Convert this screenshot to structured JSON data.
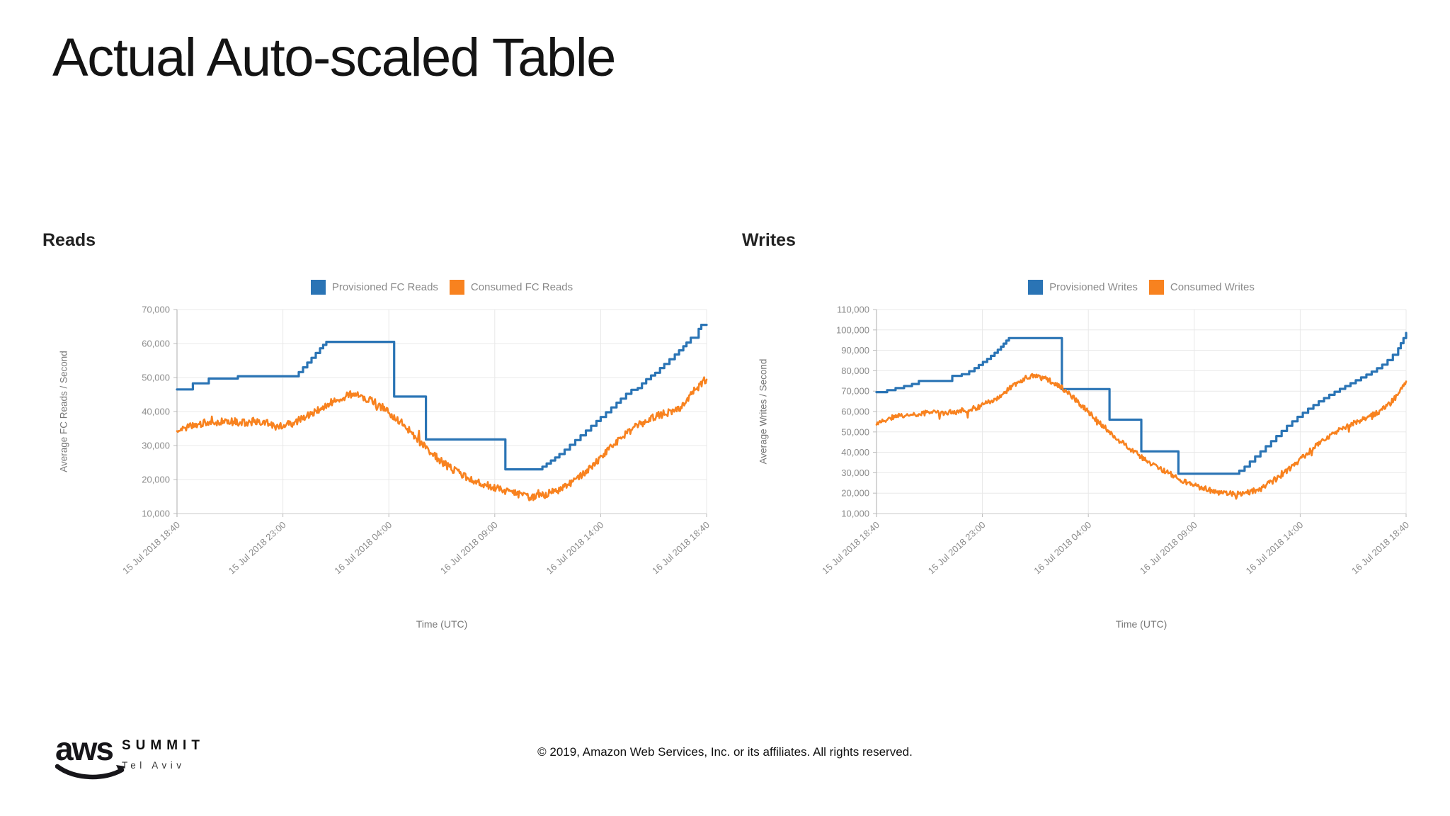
{
  "slide": {
    "title": "Actual Auto-scaled Table"
  },
  "footer": {
    "logo_text": "aws",
    "brand": "SUMMIT",
    "brand_sub": "Tel Aviv",
    "copyright": "© 2019, Amazon Web Services, Inc. or its affiliates. All rights reserved."
  },
  "colors": {
    "provisioned": "#2a74b5",
    "consumed": "#f8821f",
    "grid": "#e8e8e8",
    "axis": "#bbbbbb",
    "tick_text": "#8c8c8c"
  },
  "chart_data": [
    {
      "id": "reads",
      "type": "line",
      "title": "Reads",
      "ylabel": "Average FC Reads / Second",
      "xlabel": "Time (UTC)",
      "ylim": [
        10000,
        70000
      ],
      "ytick_step": 10000,
      "yticks": [
        "70,000",
        "60,000",
        "50,000",
        "40,000",
        "30,000",
        "20,000",
        "10,000"
      ],
      "xticks": [
        "15 Jul 2018 18:40",
        "15 Jul 2018 23:00",
        "16 Jul 2018 04:00",
        "16 Jul 2018 09:00",
        "16 Jul 2018 14:00",
        "16 Jul 2018 18:40"
      ],
      "legend_position": "top",
      "grid": true,
      "series": [
        {
          "name": "Provisioned FC Reads",
          "color_key": "provisioned",
          "style": "step",
          "points": [
            [
              0,
              46500
            ],
            [
              0.03,
              48300
            ],
            [
              0.06,
              49700
            ],
            [
              0.115,
              50400
            ],
            [
              0.23,
              51600
            ],
            [
              0.238,
              53000
            ],
            [
              0.246,
              54400
            ],
            [
              0.254,
              55800
            ],
            [
              0.262,
              57200
            ],
            [
              0.27,
              58600
            ],
            [
              0.276,
              59600
            ],
            [
              0.282,
              60500
            ],
            [
              0.41,
              44400
            ],
            [
              0.47,
              31800
            ],
            [
              0.62,
              23000
            ],
            [
              0.69,
              23800
            ],
            [
              0.698,
              24700
            ],
            [
              0.706,
              25600
            ],
            [
              0.714,
              26500
            ],
            [
              0.722,
              27500
            ],
            [
              0.732,
              28800
            ],
            [
              0.742,
              30200
            ],
            [
              0.752,
              31600
            ],
            [
              0.762,
              33000
            ],
            [
              0.772,
              34400
            ],
            [
              0.782,
              35800
            ],
            [
              0.792,
              37200
            ],
            [
              0.8,
              38400
            ],
            [
              0.81,
              39800
            ],
            [
              0.82,
              41200
            ],
            [
              0.83,
              42600
            ],
            [
              0.838,
              43800
            ],
            [
              0.848,
              45200
            ],
            [
              0.858,
              46400
            ],
            [
              0.87,
              46900
            ],
            [
              0.878,
              48300
            ],
            [
              0.886,
              49500
            ],
            [
              0.895,
              50600
            ],
            [
              0.903,
              51400
            ],
            [
              0.912,
              52800
            ],
            [
              0.92,
              54000
            ],
            [
              0.93,
              55400
            ],
            [
              0.94,
              56800
            ],
            [
              0.948,
              58000
            ],
            [
              0.956,
              59200
            ],
            [
              0.962,
              60300
            ],
            [
              0.97,
              61700
            ],
            [
              0.985,
              64300
            ],
            [
              0.99,
              65500
            ]
          ]
        },
        {
          "name": "Consumed FC Reads",
          "color_key": "consumed",
          "style": "noisy",
          "noise": 1150,
          "points": [
            [
              0,
              34500
            ],
            [
              0.015,
              35200
            ],
            [
              0.04,
              36200
            ],
            [
              0.07,
              36800
            ],
            [
              0.1,
              37000
            ],
            [
              0.13,
              36800
            ],
            [
              0.155,
              37300
            ],
            [
              0.175,
              36200
            ],
            [
              0.19,
              35400
            ],
            [
              0.205,
              35800
            ],
            [
              0.22,
              36800
            ],
            [
              0.24,
              38300
            ],
            [
              0.26,
              40000
            ],
            [
              0.28,
              41800
            ],
            [
              0.3,
              43300
            ],
            [
              0.315,
              44300
            ],
            [
              0.33,
              45000
            ],
            [
              0.345,
              44700
            ],
            [
              0.36,
              43800
            ],
            [
              0.375,
              42500
            ],
            [
              0.39,
              41000
            ],
            [
              0.405,
              39200
            ],
            [
              0.42,
              37200
            ],
            [
              0.435,
              35000
            ],
            [
              0.45,
              32500
            ],
            [
              0.465,
              30000
            ],
            [
              0.48,
              27800
            ],
            [
              0.495,
              25800
            ],
            [
              0.51,
              24000
            ],
            [
              0.525,
              22500
            ],
            [
              0.54,
              21200
            ],
            [
              0.555,
              20200
            ],
            [
              0.57,
              19300
            ],
            [
              0.585,
              18500
            ],
            [
              0.6,
              17700
            ],
            [
              0.615,
              17000
            ],
            [
              0.63,
              16300
            ],
            [
              0.645,
              15600
            ],
            [
              0.66,
              15000
            ],
            [
              0.675,
              14700
            ],
            [
              0.69,
              15200
            ],
            [
              0.705,
              16000
            ],
            [
              0.72,
              17000
            ],
            [
              0.735,
              18300
            ],
            [
              0.75,
              19800
            ],
            [
              0.765,
              21500
            ],
            [
              0.78,
              23500
            ],
            [
              0.795,
              25800
            ],
            [
              0.81,
              28200
            ],
            [
              0.825,
              30500
            ],
            [
              0.84,
              32500
            ],
            [
              0.855,
              34200
            ],
            [
              0.87,
              35800
            ],
            [
              0.885,
              37200
            ],
            [
              0.9,
              38300
            ],
            [
              0.915,
              39200
            ],
            [
              0.93,
              39800
            ],
            [
              0.94,
              40000
            ],
            [
              0.95,
              41000
            ],
            [
              0.96,
              42800
            ],
            [
              0.97,
              44800
            ],
            [
              0.98,
              46500
            ],
            [
              0.99,
              48000
            ],
            [
              1,
              49800
            ]
          ]
        }
      ]
    },
    {
      "id": "writes",
      "type": "line",
      "title": "Writes",
      "ylabel": "Average Writes / Second",
      "xlabel": "Time (UTC)",
      "ylim": [
        10000,
        110000
      ],
      "ytick_step": 10000,
      "yticks": [
        "110,000",
        "100,000",
        "90,000",
        "80,000",
        "70,000",
        "60,000",
        "50,000",
        "40,000",
        "30,000",
        "20,000",
        "10,000"
      ],
      "xticks": [
        "15 Jul 2018 18:40",
        "15 Jul 2018 23:00",
        "16 Jul 2018 04:00",
        "16 Jul 2018 09:00",
        "16 Jul 2018 14:00",
        "16 Jul 2018 18:40"
      ],
      "legend_position": "top",
      "grid": true,
      "series": [
        {
          "name": "Provisioned Writes",
          "color_key": "provisioned",
          "style": "step",
          "points": [
            [
              0,
              69500
            ],
            [
              0.02,
              70500
            ],
            [
              0.036,
              71500
            ],
            [
              0.052,
              72500
            ],
            [
              0.067,
              73500
            ],
            [
              0.08,
              75000
            ],
            [
              0.143,
              77500
            ],
            [
              0.161,
              78300
            ],
            [
              0.175,
              79800
            ],
            [
              0.185,
              81300
            ],
            [
              0.193,
              82800
            ],
            [
              0.201,
              84300
            ],
            [
              0.209,
              85800
            ],
            [
              0.216,
              87300
            ],
            [
              0.223,
              88800
            ],
            [
              0.229,
              90300
            ],
            [
              0.235,
              91800
            ],
            [
              0.24,
              93300
            ],
            [
              0.245,
              94800
            ],
            [
              0.25,
              96000
            ],
            [
              0.35,
              71000
            ],
            [
              0.44,
              56000
            ],
            [
              0.5,
              40500
            ],
            [
              0.57,
              29500
            ],
            [
              0.685,
              31000
            ],
            [
              0.695,
              33000
            ],
            [
              0.705,
              35500
            ],
            [
              0.715,
              38000
            ],
            [
              0.725,
              40500
            ],
            [
              0.735,
              43000
            ],
            [
              0.745,
              45500
            ],
            [
              0.755,
              48000
            ],
            [
              0.765,
              50500
            ],
            [
              0.775,
              53000
            ],
            [
              0.785,
              55200
            ],
            [
              0.795,
              57400
            ],
            [
              0.805,
              59400
            ],
            [
              0.815,
              61400
            ],
            [
              0.825,
              63200
            ],
            [
              0.835,
              65000
            ],
            [
              0.845,
              66600
            ],
            [
              0.855,
              68200
            ],
            [
              0.865,
              69700
            ],
            [
              0.875,
              71100
            ],
            [
              0.885,
              72500
            ],
            [
              0.895,
              73900
            ],
            [
              0.905,
              75300
            ],
            [
              0.915,
              76700
            ],
            [
              0.925,
              78100
            ],
            [
              0.935,
              79600
            ],
            [
              0.945,
              81200
            ],
            [
              0.955,
              83000
            ],
            [
              0.965,
              85200
            ],
            [
              0.975,
              87800
            ],
            [
              0.985,
              91000
            ],
            [
              0.99,
              93500
            ],
            [
              0.995,
              96000
            ],
            [
              1,
              98500
            ]
          ]
        },
        {
          "name": "Consumed Writes",
          "color_key": "consumed",
          "style": "noisy",
          "noise": 1300,
          "points": [
            [
              0,
              53500
            ],
            [
              0.01,
              55000
            ],
            [
              0.025,
              56800
            ],
            [
              0.05,
              58000
            ],
            [
              0.08,
              59000
            ],
            [
              0.11,
              59600
            ],
            [
              0.13,
              59300
            ],
            [
              0.15,
              59800
            ],
            [
              0.17,
              60800
            ],
            [
              0.19,
              62000
            ],
            [
              0.21,
              64200
            ],
            [
              0.23,
              67200
            ],
            [
              0.25,
              71200
            ],
            [
              0.265,
              74200
            ],
            [
              0.28,
              76300
            ],
            [
              0.29,
              77300
            ],
            [
              0.3,
              77000
            ],
            [
              0.315,
              76400
            ],
            [
              0.33,
              74800
            ],
            [
              0.345,
              72500
            ],
            [
              0.36,
              69500
            ],
            [
              0.38,
              64800
            ],
            [
              0.4,
              59800
            ],
            [
              0.42,
              54800
            ],
            [
              0.44,
              50000
            ],
            [
              0.46,
              45500
            ],
            [
              0.48,
              41500
            ],
            [
              0.5,
              37800
            ],
            [
              0.52,
              34400
            ],
            [
              0.54,
              31400
            ],
            [
              0.56,
              28600
            ],
            [
              0.58,
              26000
            ],
            [
              0.6,
              23800
            ],
            [
              0.62,
              22000
            ],
            [
              0.64,
              20700
            ],
            [
              0.66,
              19900
            ],
            [
              0.68,
              19600
            ],
            [
              0.7,
              20300
            ],
            [
              0.715,
              21400
            ],
            [
              0.73,
              23000
            ],
            [
              0.75,
              26000
            ],
            [
              0.77,
              29800
            ],
            [
              0.79,
              34200
            ],
            [
              0.81,
              38800
            ],
            [
              0.83,
              43200
            ],
            [
              0.85,
              47000
            ],
            [
              0.87,
              50300
            ],
            [
              0.89,
              53000
            ],
            [
              0.91,
              55300
            ],
            [
              0.93,
              57400
            ],
            [
              0.95,
              60000
            ],
            [
              0.96,
              61800
            ],
            [
              0.97,
              64000
            ],
            [
              0.98,
              67000
            ],
            [
              0.99,
              70500
            ],
            [
              1,
              75000
            ]
          ]
        }
      ]
    }
  ]
}
